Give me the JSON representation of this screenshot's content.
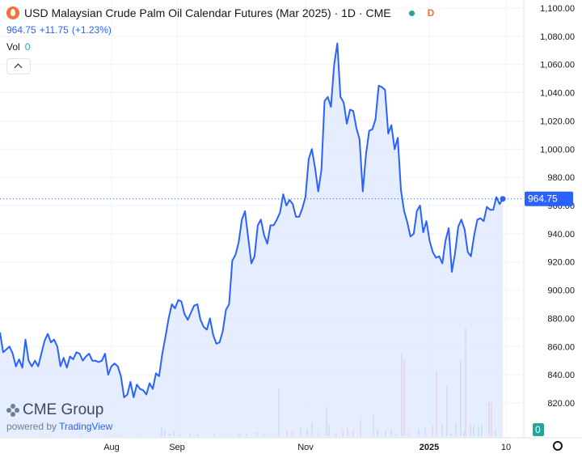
{
  "header": {
    "title": "USD Malaysian Crude Palm Oil Calendar Futures (Mar 2025) · 1D · CME",
    "badge": "D",
    "price": "964.75",
    "change": "+11.75",
    "change_pct": "(+1.23%)"
  },
  "volume": {
    "label": "Vol",
    "value": "0"
  },
  "branding": {
    "logo": "CME Group",
    "powered": "powered by",
    "powered_brand": "TradingView"
  },
  "colors": {
    "line": "#2962ff",
    "fill": "#dfe8fe",
    "vol_up": "#26a69a",
    "vol_down": "#ef5350",
    "last_price": "#2962ff"
  },
  "chart_data": {
    "type": "area",
    "title": "USD Malaysian Crude Palm Oil Calendar Futures (Mar 2025) · 1D · CME",
    "ylim": [
      808,
      1105
    ],
    "y_ticks": [
      "1,100.00",
      "1,080.00",
      "1,060.00",
      "1,040.00",
      "1,020.00",
      "1,000.00",
      "980.00",
      "960.00",
      "940.00",
      "920.00",
      "900.00",
      "880.00",
      "860.00",
      "840.00",
      "820.00"
    ],
    "x_tick_labels": [
      "Aug",
      "Sep",
      "Nov",
      "2025",
      "10"
    ],
    "last_price": 964.75,
    "last_price_label": "964.75",
    "volume_axis_label": "0",
    "series": [
      {
        "values": [
          870,
          856,
          858,
          860,
          855,
          846,
          851,
          845,
          865,
          850,
          846,
          850,
          846,
          855,
          864,
          869,
          863,
          865,
          860,
          846,
          852,
          845,
          853,
          851,
          856,
          855,
          850,
          853,
          855,
          850,
          850,
          849,
          850,
          855,
          840,
          846,
          848,
          846,
          839,
          824,
          826,
          835,
          824,
          833,
          830,
          829,
          826,
          834,
          830,
          841,
          839,
          855,
          867,
          880,
          890,
          887,
          893,
          892,
          883,
          879,
          884,
          889,
          890,
          879,
          874,
          872,
          880,
          868,
          862,
          863,
          871,
          886,
          890,
          921,
          925,
          934,
          950,
          956,
          937,
          919,
          924,
          946,
          950,
          939,
          933,
          946,
          946,
          950,
          955,
          968,
          960,
          964,
          961,
          952,
          952,
          958,
          966,
          993,
          1000,
          987,
          970,
          985,
          1034,
          1037,
          1030,
          1060,
          1075,
          1037,
          1033,
          1018,
          1028,
          1027,
          1015,
          1007,
          970,
          996,
          1013,
          1014,
          1021,
          1045,
          1044,
          1042,
          1011,
          1017,
          1000,
          1008,
          971,
          956,
          948,
          938,
          940,
          956,
          960,
          941,
          949,
          935,
          927,
          923,
          924,
          919,
          935,
          944,
          913,
          926,
          945,
          950,
          943,
          927,
          924,
          939,
          950,
          951,
          949,
          959,
          957,
          957,
          966,
          961,
          965
        ]
      }
    ],
    "volume": [
      {
        "i": 56,
        "v": 1
      },
      {
        "i": 100,
        "v": 0.5
      },
      {
        "i": 136,
        "v": 1
      },
      {
        "i": 142,
        "v": 0.7
      },
      {
        "i": 146,
        "v": 0.5
      },
      {
        "i": 169,
        "v": 1
      },
      {
        "i": 200,
        "v": 10
      },
      {
        "i": 204,
        "v": 8
      },
      {
        "i": 210,
        "v": 3
      },
      {
        "i": 215,
        "v": 6
      },
      {
        "i": 222,
        "v": 2
      },
      {
        "i": 235,
        "v": 3
      },
      {
        "i": 245,
        "v": 2
      },
      {
        "i": 265,
        "v": 3
      },
      {
        "i": 280,
        "v": 2
      },
      {
        "i": 296,
        "v": 3
      },
      {
        "i": 305,
        "v": 2
      },
      {
        "i": 318,
        "v": 4
      },
      {
        "i": 326,
        "v": 3
      },
      {
        "i": 336,
        "v": 2
      },
      {
        "i": 345,
        "v": 52
      },
      {
        "i": 355,
        "v": 7
      },
      {
        "i": 362,
        "v": 5
      },
      {
        "i": 372,
        "v": 10
      },
      {
        "i": 380,
        "v": 8
      },
      {
        "i": 386,
        "v": 14
      },
      {
        "i": 394,
        "v": 4
      },
      {
        "i": 404,
        "v": 31
      },
      {
        "i": 407,
        "v": 12
      },
      {
        "i": 416,
        "v": 3
      },
      {
        "i": 424,
        "v": 6
      },
      {
        "i": 430,
        "v": 9
      },
      {
        "i": 437,
        "v": 5
      },
      {
        "i": 446,
        "v": 18
      },
      {
        "i": 462,
        "v": 23
      },
      {
        "i": 467,
        "v": 7
      },
      {
        "i": 477,
        "v": 7
      },
      {
        "i": 484,
        "v": 7
      },
      {
        "i": 490,
        "v": 2
      },
      {
        "i": 497,
        "v": 90
      },
      {
        "i": 500,
        "v": 83
      },
      {
        "i": 506,
        "v": 4
      },
      {
        "i": 518,
        "v": 7
      },
      {
        "i": 526,
        "v": 10
      },
      {
        "i": 535,
        "v": 11
      },
      {
        "i": 540,
        "v": 70
      },
      {
        "i": 547,
        "v": 14
      },
      {
        "i": 553,
        "v": 55
      },
      {
        "i": 558,
        "v": 4
      },
      {
        "i": 564,
        "v": 14
      },
      {
        "i": 570,
        "v": 82
      },
      {
        "i": 574,
        "v": 5
      },
      {
        "i": 576,
        "v": 118
      },
      {
        "i": 582,
        "v": 13
      },
      {
        "i": 586,
        "v": 12
      },
      {
        "i": 592,
        "v": 11
      },
      {
        "i": 596,
        "v": 13
      },
      {
        "i": 605,
        "v": 37
      },
      {
        "i": 608,
        "v": 37
      },
      {
        "i": 613,
        "v": 8
      }
    ]
  }
}
